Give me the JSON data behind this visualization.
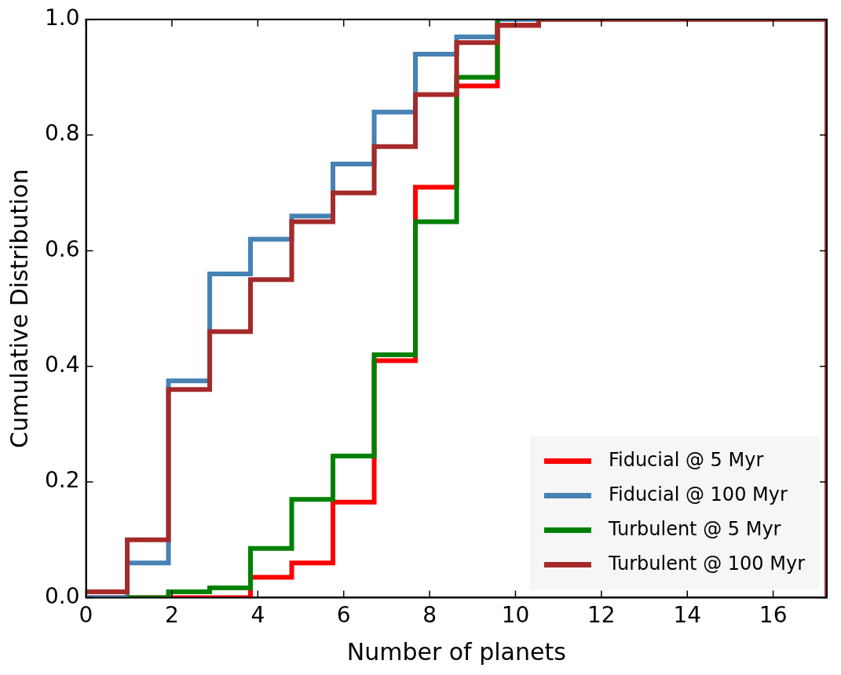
{
  "chart_data": {
    "type": "step",
    "xlabel": "Number of planets",
    "ylabel": "Cumulative Distribution",
    "x": [
      0,
      0.96,
      1.92,
      2.88,
      3.83,
      4.79,
      5.75,
      6.71,
      7.67,
      8.63,
      9.58,
      10.54,
      11.5,
      12.46,
      13.42,
      14.38,
      15.33,
      16.29,
      17.25,
      17.25
    ],
    "series": [
      {
        "name": "Fiducial @ 5 Myr",
        "color": "#ff0000",
        "values": [
          0,
          0,
          0,
          0,
          0.035,
          0.06,
          0.165,
          0.41,
          0.71,
          0.885,
          0.99,
          1,
          null,
          null,
          null,
          null,
          null,
          null,
          null,
          null
        ]
      },
      {
        "name": "Fiducial @ 100 Myr",
        "color": "#4682b4",
        "values": [
          0,
          0.06,
          0.375,
          0.56,
          0.62,
          0.66,
          0.75,
          0.84,
          0.94,
          0.97,
          1,
          1,
          null,
          null,
          null,
          null,
          null,
          null,
          null,
          null
        ]
      },
      {
        "name": "Turbulent @ 5 Myr",
        "color": "#008000",
        "values": [
          null,
          0,
          0.01,
          0.017,
          0.085,
          0.17,
          0.245,
          0.42,
          0.65,
          0.9,
          1,
          null,
          null,
          null,
          null,
          null,
          null,
          null,
          null,
          null
        ]
      },
      {
        "name": "Turbulent @ 100 Myr",
        "color": "#a52a2a",
        "values": [
          0.01,
          0.1,
          0.36,
          0.46,
          0.55,
          0.65,
          0.7,
          0.78,
          0.87,
          0.96,
          0.99,
          1,
          1,
          1,
          1,
          1,
          1,
          1,
          1,
          0
        ]
      }
    ],
    "xlim": [
      0,
      17.25
    ],
    "xticks": [
      0,
      2,
      4,
      6,
      8,
      10,
      12,
      14,
      16
    ],
    "ylim": [
      0,
      1
    ],
    "yticks": [
      {
        "value": 0,
        "label": "0.0"
      },
      {
        "value": 0.2,
        "label": "0.2"
      },
      {
        "value": 0.4,
        "label": "0.4"
      },
      {
        "value": 0.6,
        "label": "0.6"
      },
      {
        "value": 0.8,
        "label": "0.8"
      },
      {
        "value": 1,
        "label": "1.0"
      }
    ],
    "legend": "bottom right",
    "grid": false,
    "line_style": "solid",
    "marker": "none"
  }
}
